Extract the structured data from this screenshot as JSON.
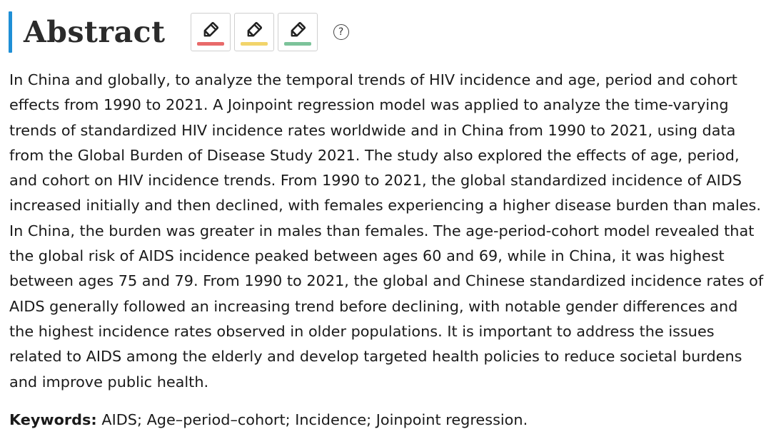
{
  "header": {
    "title": "Abstract",
    "help_symbol": "?"
  },
  "highlight_tools": [
    {
      "icon": "pencil-icon",
      "color": "#e86a6a"
    },
    {
      "icon": "pencil-icon",
      "color": "#f2d46b"
    },
    {
      "icon": "pencil-icon",
      "color": "#7cc39a"
    }
  ],
  "colors": {
    "accent": "#1f8fd6"
  },
  "abstract": {
    "text": "In China and globally, to analyze the temporal trends of HIV incidence and age, period and cohort effects from 1990 to 2021. A Joinpoint regression model was applied to analyze the time-varying trends of standardized HIV incidence rates worldwide and in China from 1990 to 2021, using data from the Global Burden of Disease Study 2021. The study also explored the effects of age, period, and cohort on HIV incidence trends. From 1990 to 2021, the global standardized incidence of AIDS increased initially and then declined, with females experiencing a higher disease burden than males. In China, the burden was greater in males than females. The age-period-cohort model revealed that the global risk of AIDS incidence peaked between ages 60 and 69, while in China, it was highest between ages 75 and 79. From 1990 to 2021, the global and Chinese standardized incidence rates of AIDS generally followed an increasing trend before declining, with notable gender differences and the highest incidence rates observed in older populations. It is important to address the issues related to AIDS among the elderly and develop targeted health policies to reduce societal burdens and improve public health."
  },
  "keywords": {
    "label": "Keywords:",
    "value": "AIDS; Age–period–cohort; Incidence; Joinpoint regression."
  }
}
